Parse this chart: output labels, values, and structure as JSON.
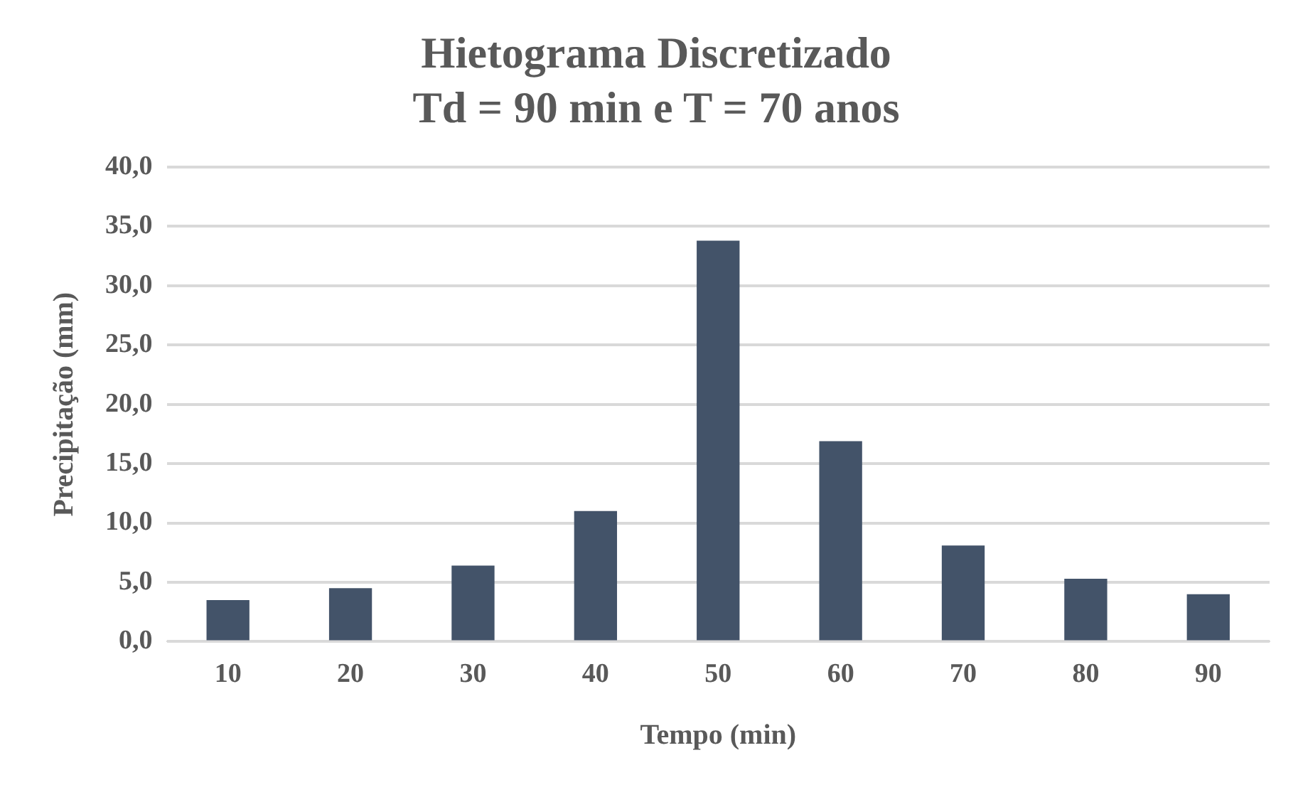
{
  "chart_data": {
    "type": "bar",
    "title": "Hietograma Discretizado\nTd = 90 min e T = 70 anos",
    "xlabel": "Tempo (min)",
    "ylabel": "Precipitação (mm)",
    "categories": [
      "10",
      "20",
      "30",
      "40",
      "50",
      "60",
      "70",
      "80",
      "90"
    ],
    "values": [
      3.5,
      4.5,
      6.4,
      11.0,
      33.8,
      16.9,
      8.1,
      5.3,
      4.0
    ],
    "color": "#435369",
    "ylim": [
      0,
      40
    ],
    "yticks": [
      {
        "value": 0,
        "label": "0,0"
      },
      {
        "value": 5,
        "label": "5,0"
      },
      {
        "value": 10,
        "label": "10,0"
      },
      {
        "value": 15,
        "label": "15,0"
      },
      {
        "value": 20,
        "label": "20,0"
      },
      {
        "value": 25,
        "label": "25,0"
      },
      {
        "value": 30,
        "label": "30,0"
      },
      {
        "value": 35,
        "label": "35,0"
      },
      {
        "value": 40,
        "label": "40,0"
      }
    ],
    "grid": "y",
    "legend": false
  }
}
